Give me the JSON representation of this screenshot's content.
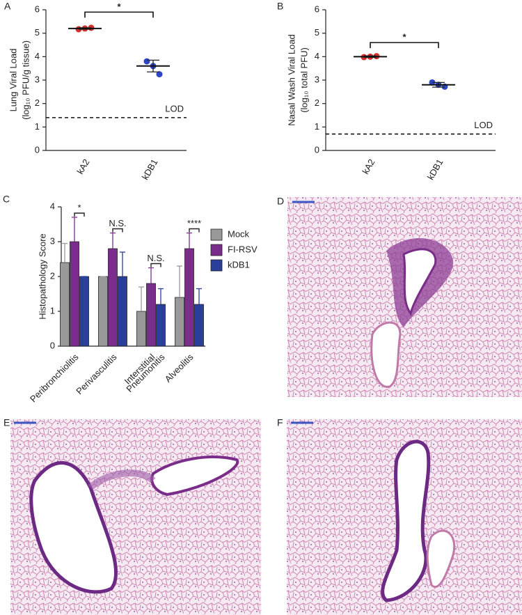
{
  "chart_data": [
    {
      "type": "dot",
      "panel": "A",
      "ylabel": [
        "Lung Viral Load",
        "(log₁₀ PFU/g tissue)"
      ],
      "categories": [
        "kA2",
        "kDB1"
      ],
      "groups": [
        {
          "color": "#d0312d",
          "points": [
            5.17,
            5.2,
            5.23
          ],
          "mean": 5.2,
          "error": 0.03
        },
        {
          "color": "#2c46c8",
          "points": [
            3.8,
            3.6,
            3.25
          ],
          "mean": 3.6,
          "error": 0.25
        }
      ],
      "ylim": [
        0,
        6
      ],
      "yticks": [
        0,
        1,
        2,
        3,
        4,
        5,
        6
      ],
      "lod": {
        "value": 1.4,
        "label": "LOD"
      },
      "significance": {
        "label": "*",
        "value": 5.9
      }
    },
    {
      "type": "dot",
      "panel": "B",
      "ylabel": [
        "Nasal Wash Viral Load",
        "(log₁₀ total PFU)"
      ],
      "categories": [
        "kA2",
        "kDB1"
      ],
      "groups": [
        {
          "color": "#d0312d",
          "points": [
            3.98,
            4.0,
            4.02
          ],
          "mean": 4.0,
          "error": 0.03
        },
        {
          "color": "#2c46c8",
          "points": [
            2.9,
            2.8,
            2.72
          ],
          "mean": 2.8,
          "error": 0.1
        }
      ],
      "ylim": [
        0,
        6
      ],
      "yticks": [
        0,
        1,
        2,
        3,
        4,
        5,
        6
      ],
      "lod": {
        "value": 0.7,
        "label": "LOD"
      },
      "significance": {
        "label": "*",
        "value": 4.6
      }
    },
    {
      "type": "bar",
      "panel": "C",
      "ylabel": [
        "Histopathology   Score"
      ],
      "categories": [
        [
          "Peribronchiolitis"
        ],
        [
          "Perivasculitis"
        ],
        [
          "Interstitial",
          "Pneumonitis"
        ],
        [
          "Alveolitis"
        ]
      ],
      "series": [
        {
          "name": "Mock",
          "color": "#999999",
          "values": [
            2.4,
            2,
            1,
            1.4
          ],
          "errors": [
            0.55,
            0,
            0.7,
            0.9
          ]
        },
        {
          "name": "FI-RSV",
          "color": "#7b2d8e",
          "values": [
            3,
            2.8,
            1.8,
            2.8
          ],
          "errors": [
            0.7,
            0.45,
            0.45,
            0.45
          ]
        },
        {
          "name": "kDB1",
          "color": "#2a3f9a",
          "values": [
            2,
            2,
            1.2,
            1.2
          ],
          "errors": [
            0,
            0.7,
            0.45,
            0.45
          ]
        }
      ],
      "significance": [
        "*",
        "N.S.",
        "N.S.",
        "****"
      ],
      "ylim": [
        0,
        4
      ],
      "yticks": [
        0,
        1,
        2,
        3,
        4
      ]
    }
  ],
  "images": [
    {
      "label": "D"
    },
    {
      "label": "E"
    },
    {
      "label": "F"
    }
  ]
}
